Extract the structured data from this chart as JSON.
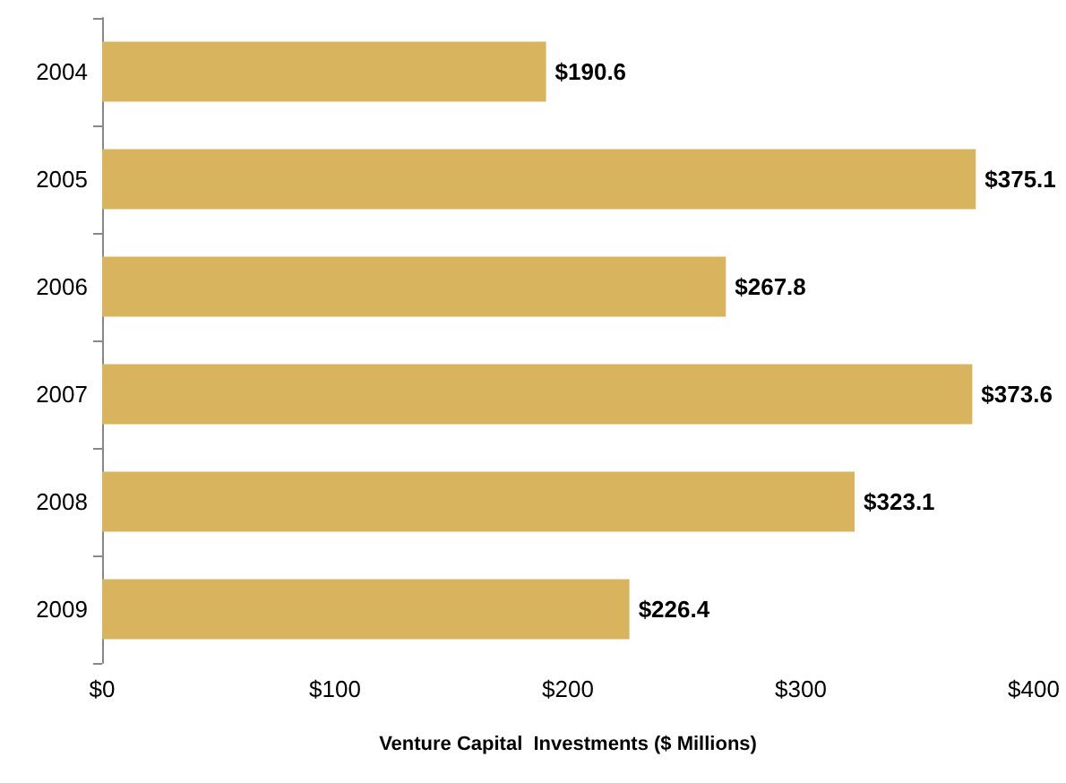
{
  "chart_data": {
    "type": "bar",
    "orientation": "horizontal",
    "xlabel": "Venture Capital  Investments ($ Millions)",
    "categories": [
      "2004",
      "2005",
      "2006",
      "2007",
      "2008",
      "2009"
    ],
    "values": [
      190.6,
      375.1,
      267.8,
      373.6,
      323.1,
      226.4
    ],
    "value_labels": [
      "$190.6",
      "$375.1",
      "$267.8",
      "$373.6",
      "$323.1",
      "$226.4"
    ],
    "color": "#d9b45f",
    "xlim": [
      0,
      400
    ],
    "xticks": [
      {
        "value": 0,
        "label": "$0"
      },
      {
        "value": 100,
        "label": "$100"
      },
      {
        "value": 200,
        "label": "$200"
      },
      {
        "value": 300,
        "label": "$300"
      },
      {
        "value": 400,
        "label": "$400"
      }
    ]
  }
}
